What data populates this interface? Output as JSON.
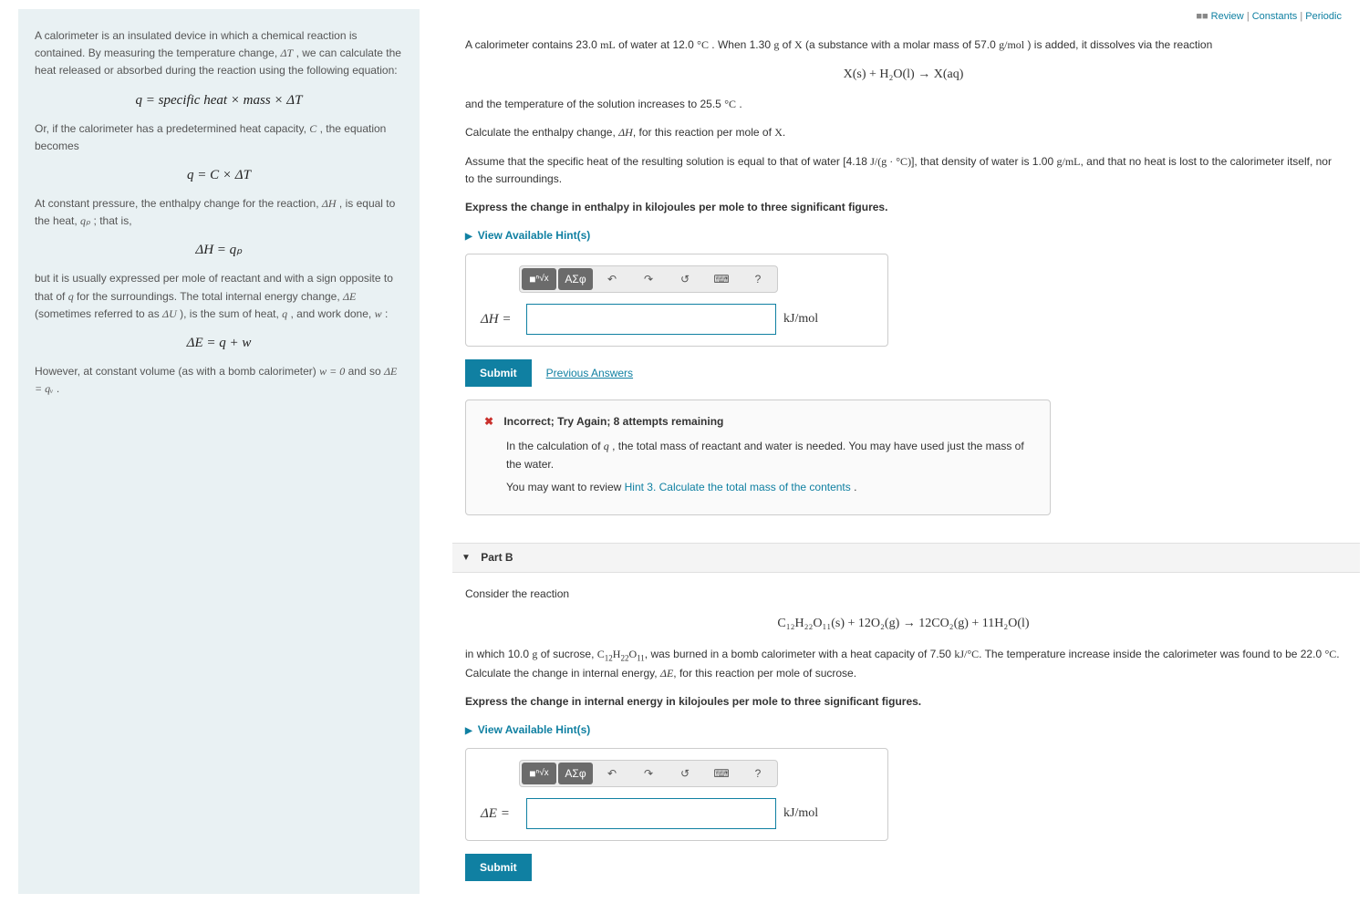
{
  "topLinks": {
    "review": "Review",
    "constants": "Constants",
    "periodic": "Periodic"
  },
  "left": {
    "p1_a": "A calorimeter is an insulated device in which a chemical reaction is contained. By measuring the temperature change, ",
    "p1_dT": "ΔT",
    "p1_b": ", we can calculate the heat released or absorbed during the reaction using the following equation:",
    "eq1": "q = specific heat × mass × ΔT",
    "p2_a": "Or, if the calorimeter has a predetermined heat capacity, ",
    "p2_C": "C",
    "p2_b": ", the equation becomes",
    "eq2": "q = C × ΔT",
    "p3_a": "At constant pressure, the enthalpy change for the reaction, ",
    "p3_dH": "ΔH",
    "p3_b": ", is equal to the heat, ",
    "p3_qp": "qₚ",
    "p3_c": "; that is,",
    "eq3": "ΔH = qₚ",
    "p4_a": "but it is usually expressed per mole of reactant and with a sign opposite to that of ",
    "p4_q": "q",
    "p4_b": " for the surroundings. The total internal energy change, ",
    "p4_dE": "ΔE",
    "p4_c": " (sometimes referred to as ",
    "p4_dU": "ΔU",
    "p4_d": "), is the sum of heat, ",
    "p4_q2": "q",
    "p4_e": ", and work done, ",
    "p4_w": "w",
    "p4_f": ":",
    "eq4": "ΔE = q + w",
    "p5_a": "However, at constant volume (as with a bomb calorimeter) ",
    "p5_w0": "w = 0",
    "p5_b": " and so ",
    "p5_eq": "ΔE = qᵥ",
    "p5_c": "."
  },
  "partA": {
    "intro": "A calorimeter contains 23.0 mL of water at 12.0 °C . When 1.30 g of X (a substance with a molar mass of 57.0 g/mol ) is added, it dissolves via the reaction",
    "reaction": "X(s) + H₂O(l) → X(aq)",
    "line2": "and the temperature of the solution increases to 25.5 °C .",
    "line3": "Calculate the enthalpy change, ΔH, for this reaction per mole of X.",
    "line4": "Assume that the specific heat of the resulting solution is equal to that of water [4.18 J/(g · °C)],  that density of water is 1.00 g/mL, and that no heat is lost to the calorimeter itself, nor to the surroundings.",
    "express": "Express the change in enthalpy in kilojoules per mole to three significant figures.",
    "hints": "View Available Hint(s)",
    "prefix": "ΔH =",
    "unit": "kJ/mol",
    "submit": "Submit",
    "prev": "Previous Answers",
    "feedback": {
      "head": "Incorrect; Try Again; 8 attempts remaining",
      "body1": "In the calculation of q , the total mass of reactant and water is needed. You may have used just the mass of the water.",
      "body2a": "You may want to review ",
      "hintlink": "Hint 3. Calculate the total mass of the contents",
      "body2b": "."
    }
  },
  "partB": {
    "header": "Part B",
    "intro": "Consider the reaction",
    "reaction": "C₁₂H₂₂O₁₁(s) + 12O₂(g) → 12CO₂(g) + 11H₂O(l)",
    "body": "in which 10.0 g of sucrose, C₁₂H₂₂O₁₁, was burned in a bomb calorimeter with a heat capacity of 7.50 kJ/°C. The temperature increase inside the calorimeter was found to be 22.0 °C. Calculate the change in internal energy, ΔE, for this reaction per mole of sucrose.",
    "express": "Express the change in internal energy in kilojoules per mole to three significant figures.",
    "hints": "View Available Hint(s)",
    "prefix": "ΔE =",
    "unit": "kJ/mol",
    "submit": "Submit"
  },
  "toolbar": {
    "templates": "√x",
    "greek": "ΑΣφ",
    "undo": "↶",
    "redo": "↷",
    "reset": "↺",
    "keyboard": "⌨",
    "help": "?"
  }
}
